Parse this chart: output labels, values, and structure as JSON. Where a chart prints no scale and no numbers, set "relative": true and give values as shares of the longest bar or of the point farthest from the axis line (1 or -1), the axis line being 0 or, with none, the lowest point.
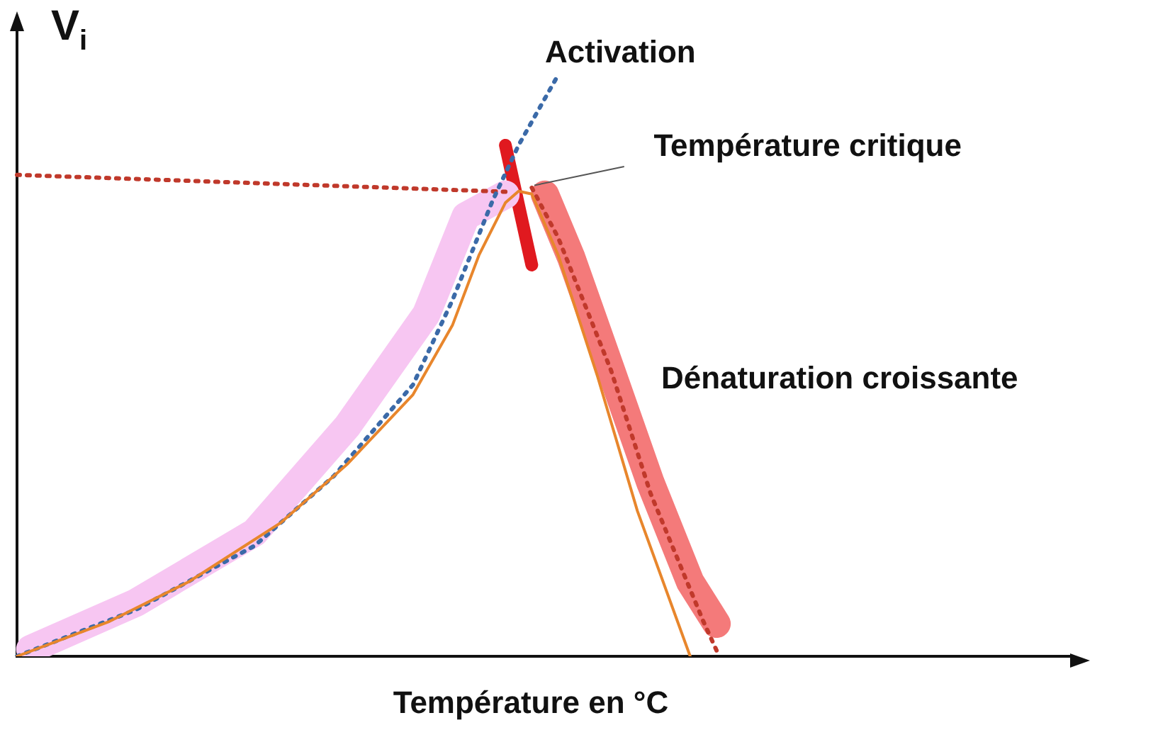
{
  "chart_data": {
    "type": "line",
    "relative": true,
    "xlabel": "Température en °C",
    "ylabel": "V$_{i}$",
    "legend": false,
    "marker": "none",
    "categories": [
      null,
      null,
      null,
      null,
      null,
      null,
      null,
      null,
      null,
      null,
      null,
      null,
      null,
      null,
      null,
      null,
      null,
      null,
      null,
      null,
      null,
      null,
      null,
      null,
      null,
      null,
      null,
      null,
      null,
      null,
      null,
      null,
      null,
      null,
      null,
      null,
      null,
      null,
      null,
      null,
      null,
      null,
      null,
      null,
      null,
      null,
      null,
      null,
      null,
      null,
      null,
      null,
      null,
      null,
      null,
      null,
      null,
      null,
      null,
      null,
      null,
      null,
      null,
      null,
      null,
      null,
      null,
      null,
      null,
      null,
      null,
      null,
      null,
      null,
      null,
      null,
      null,
      null,
      null,
      null,
      null
    ],
    "annotations": [
      "Activation",
      "Température critique",
      "Dénaturation croissante"
    ],
    "series": [
      {
        "color": "#f7c6f2",
        "line_style": "solid",
        "values": [
          null,
          0.012,
          null,
          null,
          null,
          null,
          null,
          null,
          null,
          0.092,
          null,
          null,
          null,
          null,
          null,
          null,
          null,
          null,
          0.213,
          null,
          null,
          null,
          null,
          null,
          null,
          0.395,
          null,
          null,
          null,
          null,
          null,
          0.588,
          null,
          null,
          0.757,
          null,
          null,
          0.794,
          null,
          null,
          null,
          null,
          null,
          null,
          null,
          null,
          null,
          null,
          null,
          null,
          null,
          null,
          null,
          null,
          null,
          null,
          null,
          null,
          null,
          null,
          null,
          null,
          null,
          null,
          null,
          null,
          null,
          null,
          null,
          null,
          null,
          null,
          null,
          null,
          null,
          null,
          null,
          null,
          null,
          null,
          null
        ]
      },
      {
        "color": "#f47a7a",
        "line_style": "solid",
        "values": [
          null,
          null,
          null,
          null,
          null,
          null,
          null,
          null,
          null,
          null,
          null,
          null,
          null,
          null,
          null,
          null,
          null,
          null,
          null,
          null,
          null,
          null,
          null,
          null,
          null,
          null,
          null,
          null,
          null,
          null,
          null,
          null,
          null,
          null,
          null,
          null,
          null,
          null,
          null,
          null,
          0.794,
          null,
          0.685,
          null,
          null,
          0.492,
          null,
          null,
          0.298,
          null,
          null,
          0.128,
          null,
          0.056,
          null,
          null,
          null,
          null,
          null,
          null,
          null,
          null,
          null,
          null,
          null,
          null,
          null,
          null,
          null,
          null,
          null,
          null,
          null,
          null,
          null,
          null,
          null,
          null,
          null,
          null,
          null
        ]
      },
      {
        "color": "#e8862c",
        "line_style": "solid",
        "values": [
          0,
          null,
          null,
          null,
          null,
          null,
          null,
          0.06,
          null,
          null,
          null,
          null,
          null,
          0.128,
          null,
          null,
          null,
          null,
          null,
          null,
          0.23,
          null,
          null,
          null,
          null,
          0.33,
          null,
          null,
          null,
          null,
          0.45,
          null,
          null,
          0.57,
          null,
          0.69,
          null,
          0.78,
          0.8,
          0.795,
          null,
          0.69,
          null,
          null,
          0.48,
          null,
          null,
          0.25,
          null,
          null,
          null,
          0,
          null,
          null,
          null,
          null,
          null,
          null,
          null,
          null,
          null,
          null,
          null,
          null,
          null,
          null,
          null,
          null,
          null,
          null,
          null,
          null,
          null,
          null,
          null,
          null,
          null,
          null,
          null,
          null,
          null
        ]
      },
      {
        "color": "#3b6aa8",
        "line_style": "dotted",
        "values": [
          0,
          null,
          null,
          null,
          null,
          null,
          null,
          null,
          null,
          0.08,
          null,
          null,
          null,
          null,
          null,
          null,
          null,
          null,
          0.19,
          null,
          null,
          null,
          null,
          null,
          0.31,
          null,
          null,
          null,
          null,
          null,
          0.467,
          null,
          null,
          0.613,
          null,
          null,
          0.782,
          null,
          0.879,
          null,
          null,
          1,
          null,
          null,
          null,
          null,
          null,
          null,
          null,
          null,
          null,
          null,
          null,
          null,
          null,
          null,
          null,
          null,
          null,
          null,
          null,
          null,
          null,
          null,
          null,
          null,
          null,
          null,
          null,
          null,
          null,
          null,
          null,
          null,
          null,
          null,
          null,
          null,
          null,
          null,
          null
        ]
      },
      {
        "color": "#c0392b",
        "line_style": "dotted",
        "values": [
          0.828,
          null,
          null,
          null,
          null,
          null,
          null,
          null,
          null,
          null,
          null,
          null,
          null,
          null,
          null,
          null,
          null,
          null,
          null,
          null,
          null,
          null,
          null,
          null,
          null,
          null,
          null,
          null,
          null,
          null,
          null,
          null,
          null,
          null,
          null,
          null,
          null,
          0.799,
          null,
          null,
          null,
          null,
          null,
          null,
          null,
          null,
          null,
          null,
          null,
          null,
          null,
          null,
          null,
          null,
          null,
          null,
          null,
          null,
          null,
          null,
          null,
          null,
          null,
          null,
          null,
          null,
          null,
          null,
          null,
          null,
          null,
          null,
          null,
          null,
          null,
          null,
          null,
          null,
          null,
          null,
          null
        ]
      },
      {
        "color": "#c0392b",
        "line_style": "dotted",
        "values": [
          null,
          null,
          null,
          null,
          null,
          null,
          null,
          null,
          null,
          null,
          null,
          null,
          null,
          null,
          null,
          null,
          null,
          null,
          null,
          null,
          null,
          null,
          null,
          null,
          null,
          null,
          null,
          null,
          null,
          null,
          null,
          null,
          null,
          null,
          null,
          null,
          null,
          null,
          null,
          0.806,
          null,
          0.72,
          null,
          null,
          null,
          0.492,
          null,
          null,
          0.28,
          null,
          null,
          null,
          0.06,
          0.01,
          null,
          null,
          null,
          null,
          null,
          null,
          null,
          null,
          null,
          null,
          null,
          null,
          null,
          null,
          null,
          null,
          null,
          null,
          null,
          null,
          null,
          null,
          null,
          null,
          null,
          null,
          null
        ]
      },
      {
        "color": "#e0191f",
        "line_style": "solid",
        "values": [
          null,
          null,
          null,
          null,
          null,
          null,
          null,
          null,
          null,
          null,
          null,
          null,
          null,
          null,
          null,
          null,
          null,
          null,
          null,
          null,
          null,
          null,
          null,
          null,
          null,
          null,
          null,
          null,
          null,
          null,
          null,
          null,
          null,
          null,
          null,
          null,
          null,
          0.879,
          null,
          0.673,
          null,
          null,
          null,
          null,
          null,
          null,
          null,
          null,
          null,
          null,
          null,
          null,
          null,
          null,
          null,
          null,
          null,
          null,
          null,
          null,
          null,
          null,
          null,
          null,
          null,
          null,
          null,
          null,
          null,
          null,
          null,
          null,
          null,
          null,
          null,
          null,
          null,
          null,
          null,
          null,
          null
        ]
      }
    ]
  }
}
